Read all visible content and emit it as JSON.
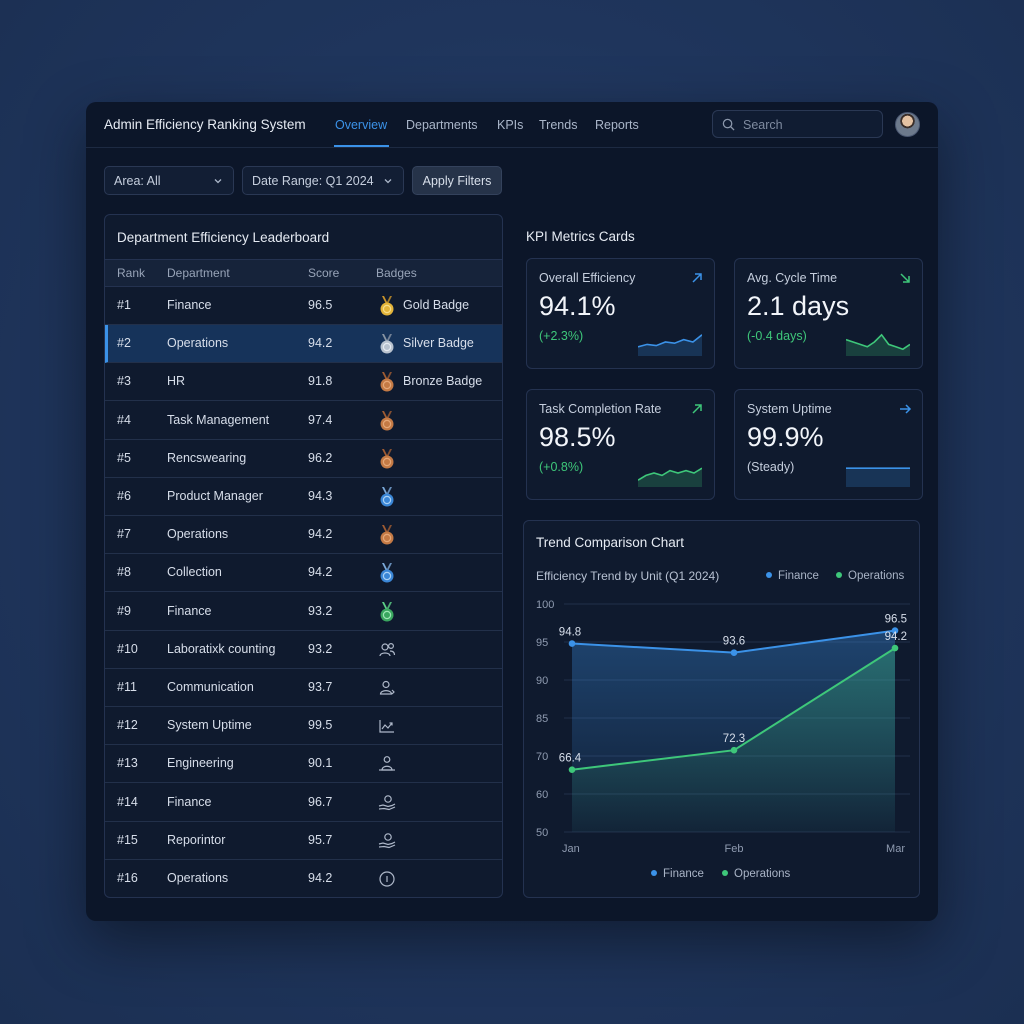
{
  "app": {
    "title": "Admin Efficiency Ranking System",
    "nav": [
      "Overview",
      "Departments",
      "KPIs",
      "Trends",
      "Reports"
    ],
    "active_nav": "Overview",
    "search_placeholder": "Search"
  },
  "filters": {
    "area": "Area: All",
    "date_range": "Date Range: Q1 2024",
    "apply_label": "Apply Filters"
  },
  "leaderboard": {
    "title": "Department Efficiency Leaderboard",
    "columns": [
      "Rank",
      "Department",
      "Score",
      "Badges"
    ],
    "rows": [
      {
        "rank": "#1",
        "department": "Finance",
        "score": "96.5",
        "badge_icon": "gold-medal-icon",
        "badge": "Gold Badge"
      },
      {
        "rank": "#2",
        "department": "Operations",
        "score": "94.2",
        "badge_icon": "silver-medal-icon",
        "badge": "Silver Badge",
        "selected": true
      },
      {
        "rank": "#3",
        "department": "HR",
        "score": "91.8",
        "badge_icon": "bronze-medal-icon",
        "badge": "Bronze Badge"
      },
      {
        "rank": "#4",
        "department": "Task Management",
        "score": "97.4",
        "badge_icon": "bronze-medal-icon",
        "badge": ""
      },
      {
        "rank": "#5",
        "department": "Rencswearing",
        "score": "96.2",
        "badge_icon": "bronze-medal-icon",
        "badge": ""
      },
      {
        "rank": "#6",
        "department": "Product Manager",
        "score": "94.3",
        "badge_icon": "blue-medal-icon",
        "badge": ""
      },
      {
        "rank": "#7",
        "department": "Operations",
        "score": "94.2",
        "badge_icon": "bronze-medal-icon",
        "badge": ""
      },
      {
        "rank": "#8",
        "department": "Collection",
        "score": "94.2",
        "badge_icon": "blue-medal-icon",
        "badge": ""
      },
      {
        "rank": "#9",
        "department": "Finance",
        "score": "93.2",
        "badge_icon": "green-medal-icon",
        "badge": ""
      },
      {
        "rank": "#10",
        "department": "Laboratixk counting",
        "score": "93.2",
        "badge_icon": "users-icon",
        "badge": ""
      },
      {
        "rank": "#11",
        "department": "Communication",
        "score": "93.7",
        "badge_icon": "user-icon",
        "badge": ""
      },
      {
        "rank": "#12",
        "department": "System Uptime",
        "score": "99.5",
        "badge_icon": "trend-up-icon",
        "badge": ""
      },
      {
        "rank": "#13",
        "department": "Engineering",
        "score": "90.1",
        "badge_icon": "user-hand-icon",
        "badge": ""
      },
      {
        "rank": "#14",
        "department": "Finance",
        "score": "96.7",
        "badge_icon": "hand-coin-icon",
        "badge": ""
      },
      {
        "rank": "#15",
        "department": "Reporintor",
        "score": "95.7",
        "badge_icon": "hand-coin-icon",
        "badge": ""
      },
      {
        "rank": "#16",
        "department": "Operations",
        "score": "94.2",
        "badge_icon": "info-circle-icon",
        "badge": ""
      }
    ]
  },
  "kpi_section_title": "KPI Metrics Cards",
  "kpis": [
    {
      "title": "Overall Efficiency",
      "value": "94.1%",
      "delta": "(+2.3%)",
      "arrow_icon": "arrow-up-right-icon",
      "color": "#3b92e8",
      "delta_color": "#3ec77a",
      "spark": [
        3,
        4,
        3.5,
        5,
        4.5,
        6,
        5,
        8
      ]
    },
    {
      "title": "Avg. Cycle Time",
      "value": "2.1 days",
      "delta": "(-0.4 days)",
      "arrow_icon": "arrow-down-right-icon",
      "color": "#3ec77a",
      "delta_color": "#3ec77a",
      "spark": [
        6,
        5,
        4,
        3,
        5,
        8,
        4,
        3,
        2,
        4
      ]
    },
    {
      "title": "Task Completion Rate",
      "value": "98.5%",
      "delta": "(+0.8%)",
      "arrow_icon": "arrow-up-right-icon",
      "color": "#3ec77a",
      "delta_color": "#3ec77a",
      "spark": [
        2,
        4,
        5,
        4,
        6,
        5,
        6,
        5,
        7
      ]
    },
    {
      "title": "System Uptime",
      "value": "99.9%",
      "delta": "(Steady)",
      "arrow_icon": "arrow-right-icon",
      "color": "#3b92e8",
      "delta_color": "#c5cedd",
      "spark": [
        7,
        7,
        7,
        7,
        7,
        7,
        7
      ]
    }
  ],
  "trend": {
    "title": "Trend Comparison Chart",
    "subtitle": "Efficiency Trend by Unit (Q1 2024)"
  },
  "chart_data": {
    "type": "line",
    "title": "Efficiency Trend by Unit (Q1 2024)",
    "categories": [
      "Jan",
      "Feb",
      "Mar"
    ],
    "y_ticks": [
      "100",
      "95",
      "90",
      "85",
      "70",
      "60",
      "50"
    ],
    "series": [
      {
        "name": "Finance",
        "color": "#3b92e8",
        "values": [
          94.8,
          93.6,
          96.5
        ]
      },
      {
        "name": "Operations",
        "color": "#3ec77a",
        "values": [
          66.4,
          72.3,
          94.2
        ]
      }
    ],
    "legend": [
      "top-right",
      "bottom"
    ],
    "grid": true
  }
}
